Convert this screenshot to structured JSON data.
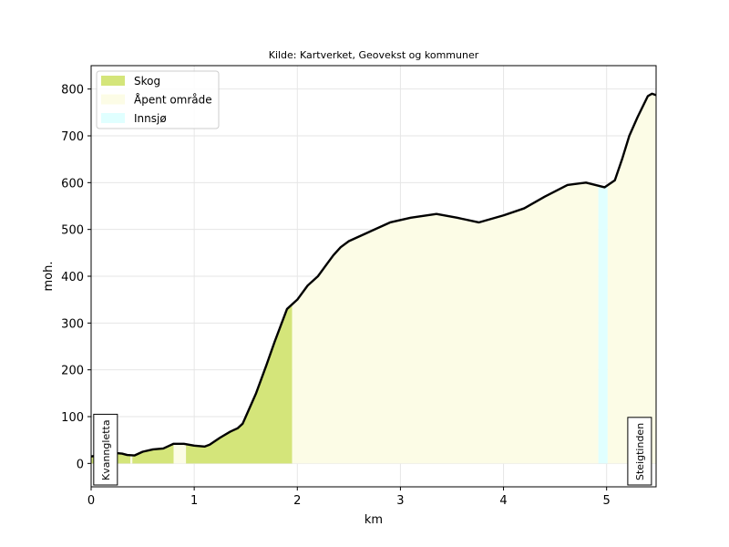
{
  "chart_data": {
    "type": "area",
    "title": "Kilde: Kartverket, Geovekst og kommuner",
    "xlabel": "km",
    "ylabel": "moh.",
    "xlim": [
      0,
      5.48
    ],
    "ylim": [
      -50,
      850
    ],
    "xticks": [
      0,
      1,
      2,
      3,
      4,
      5
    ],
    "yticks": [
      0,
      100,
      200,
      300,
      400,
      500,
      600,
      700,
      800
    ],
    "grid": true,
    "legend_position": "top-left",
    "legend": [
      {
        "key": "skog",
        "label": "Skog",
        "color": "#d4e57a"
      },
      {
        "key": "apent",
        "label": "Åpent område",
        "color": "#fcfce6"
      },
      {
        "key": "innsjo",
        "label": "Innsjø",
        "color": "#e0ffff"
      }
    ],
    "line_color": "#000000",
    "profile": {
      "x": [
        0,
        0.1,
        0.2,
        0.25,
        0.3,
        0.35,
        0.42,
        0.5,
        0.6,
        0.7,
        0.76,
        0.8,
        0.9,
        1.0,
        1.1,
        1.15,
        1.25,
        1.35,
        1.42,
        1.47,
        1.5,
        1.6,
        1.7,
        1.78,
        1.9,
        2.0,
        2.1,
        2.2,
        2.3,
        2.35,
        2.42,
        2.5,
        2.7,
        2.9,
        3.1,
        3.35,
        3.55,
        3.76,
        4.0,
        4.2,
        4.4,
        4.62,
        4.8,
        4.98,
        5.08,
        5.15,
        5.22,
        5.3,
        5.4,
        5.44,
        5.48
      ],
      "y": [
        15,
        18,
        22,
        22,
        21,
        18,
        17,
        25,
        30,
        32,
        38,
        42,
        42,
        38,
        36,
        40,
        55,
        68,
        75,
        85,
        100,
        150,
        210,
        260,
        330,
        350,
        380,
        400,
        430,
        445,
        462,
        475,
        495,
        515,
        525,
        533,
        525,
        515,
        530,
        545,
        570,
        595,
        600,
        590,
        605,
        650,
        700,
        740,
        785,
        790,
        787
      ]
    },
    "land_cover": [
      {
        "type": "skog",
        "from": 0.0,
        "to": 0.38
      },
      {
        "type": "apent",
        "from": 0.38,
        "to": 0.4
      },
      {
        "type": "skog",
        "from": 0.4,
        "to": 0.8
      },
      {
        "type": "apent",
        "from": 0.8,
        "to": 0.92
      },
      {
        "type": "skog",
        "from": 0.92,
        "to": 1.95
      },
      {
        "type": "apent",
        "from": 1.95,
        "to": 4.92
      },
      {
        "type": "innsjo",
        "from": 4.92,
        "to": 5.01
      },
      {
        "type": "apent",
        "from": 5.01,
        "to": 5.48
      }
    ],
    "annotations": [
      {
        "text": "Kvanngletta",
        "x": 0.14
      },
      {
        "text": "Steigtinden",
        "x": 5.32
      }
    ]
  }
}
